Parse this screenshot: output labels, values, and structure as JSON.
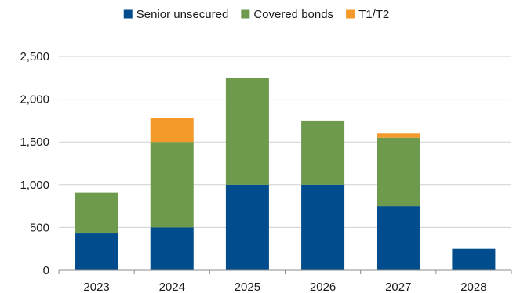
{
  "chart_data": {
    "type": "bar",
    "stacked": true,
    "categories": [
      "2023",
      "2024",
      "2025",
      "2026",
      "2027",
      "2028"
    ],
    "series": [
      {
        "name": "Senior unsecured",
        "color": "#004C8C",
        "values": [
          430,
          500,
          1000,
          1000,
          750,
          250
        ]
      },
      {
        "name": "Covered bonds",
        "color": "#6E9A4E",
        "values": [
          480,
          1000,
          1250,
          750,
          800,
          0
        ]
      },
      {
        "name": "T1/T2",
        "color": "#F39A2B",
        "values": [
          0,
          280,
          0,
          0,
          50,
          0
        ]
      }
    ],
    "ylim": [
      0,
      2500
    ],
    "yticks": [
      0,
      500,
      1000,
      1500,
      2000,
      2500
    ],
    "ytick_labels": [
      "0",
      "500",
      "1,000",
      "1,500",
      "2,000",
      "2,500"
    ],
    "grid": true,
    "legend": "top"
  }
}
